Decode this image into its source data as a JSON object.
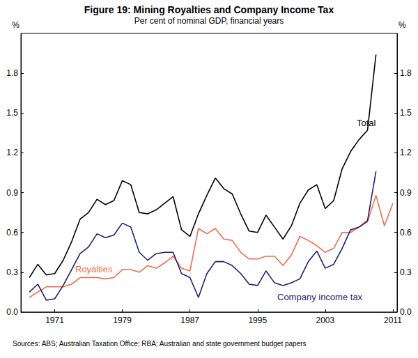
{
  "chart_data": {
    "type": "line",
    "title": "Figure 19: Mining Royalties and Company Income Tax",
    "subtitle": "Per cent of nominal GDP, financial years",
    "ylabel": "%",
    "y2label": "%",
    "annotations": [
      "Sources: ABS; Australian Taxation Office; RBA; Australian and state government budget papers"
    ],
    "x": [
      1968,
      1969,
      1970,
      1971,
      1972,
      1973,
      1974,
      1975,
      1976,
      1977,
      1978,
      1979,
      1980,
      1981,
      1982,
      1983,
      1984,
      1985,
      1986,
      1987,
      1988,
      1989,
      1990,
      1991,
      1992,
      1993,
      1994,
      1995,
      1996,
      1997,
      1998,
      1999,
      2000,
      2001,
      2002,
      2003,
      2004,
      2005,
      2006,
      2007,
      2008,
      2009,
      2010,
      2011
    ],
    "series": [
      {
        "name": "Total",
        "color": "#000000",
        "values": [
          0.26,
          0.36,
          0.28,
          0.29,
          0.39,
          0.53,
          0.7,
          0.75,
          0.85,
          0.81,
          0.84,
          0.99,
          0.96,
          0.75,
          0.74,
          0.77,
          0.82,
          0.87,
          0.62,
          0.57,
          0.74,
          0.88,
          1.01,
          0.93,
          0.89,
          0.74,
          0.61,
          0.6,
          0.73,
          0.64,
          0.55,
          0.65,
          0.82,
          0.92,
          0.96,
          0.78,
          0.84,
          1.08,
          1.21,
          1.3,
          1.37,
          1.94,
          null,
          null
        ]
      },
      {
        "name": "Royalties",
        "color": "#f26b50",
        "values": [
          0.11,
          0.15,
          0.19,
          0.19,
          0.19,
          0.21,
          0.26,
          0.26,
          0.26,
          0.25,
          0.26,
          0.32,
          0.32,
          0.3,
          0.35,
          0.33,
          0.37,
          0.42,
          0.33,
          0.31,
          0.63,
          0.59,
          0.63,
          0.55,
          0.54,
          0.45,
          0.4,
          0.4,
          0.42,
          0.42,
          0.35,
          0.43,
          0.57,
          0.54,
          0.5,
          0.45,
          0.48,
          0.6,
          0.6,
          0.64,
          0.68,
          0.88,
          0.65,
          0.82
        ]
      },
      {
        "name": "Company income tax",
        "color": "#1f1f70",
        "values": [
          0.15,
          0.21,
          0.09,
          0.1,
          0.2,
          0.32,
          0.44,
          0.49,
          0.59,
          0.56,
          0.58,
          0.67,
          0.64,
          0.45,
          0.39,
          0.44,
          0.45,
          0.45,
          0.29,
          0.26,
          0.11,
          0.29,
          0.38,
          0.38,
          0.35,
          0.29,
          0.21,
          0.2,
          0.31,
          0.22,
          0.2,
          0.22,
          0.25,
          0.38,
          0.46,
          0.33,
          0.36,
          0.48,
          0.62,
          0.64,
          0.69,
          1.06,
          null,
          null
        ]
      }
    ],
    "xlim": [
      1967,
      2011.5
    ],
    "xticks": [
      1971,
      1979,
      1987,
      1995,
      2003,
      2011
    ],
    "ylim": [
      0,
      2.1
    ],
    "yticks": [
      {
        "value": 0,
        "label": "0.0"
      },
      0.3,
      0.6,
      0.9,
      1.2,
      1.5,
      1.8
    ],
    "y2lim": [
      0,
      2.1
    ],
    "y2ticks": [
      {
        "value": 0,
        "label": "0.0"
      },
      0.3,
      0.6,
      0.9,
      1.2,
      1.5,
      1.8
    ],
    "grid": false
  }
}
